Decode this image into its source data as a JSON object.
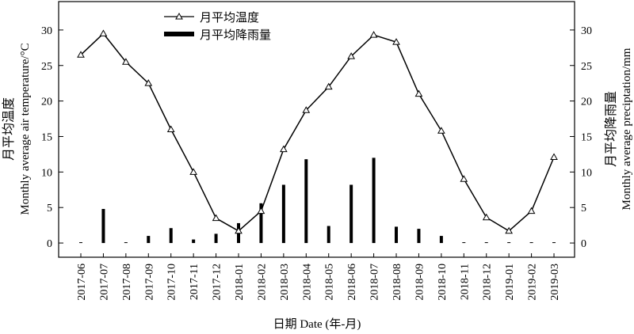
{
  "chart_data": {
    "type": "bar+line",
    "categories": [
      "2017-06",
      "2017-07",
      "2017-08",
      "2017-09",
      "2017-10",
      "2017-11",
      "2017-12",
      "2018-01",
      "2018-02",
      "2018-03",
      "2018-04",
      "2018-05",
      "2018-06",
      "2018-07",
      "2018-08",
      "2018-09",
      "2018-10",
      "2018-11",
      "2018-12",
      "2019-01",
      "2019-02",
      "2019-03"
    ],
    "series": [
      {
        "name": "月平均温度",
        "type": "line",
        "axis": "left",
        "marker": "triangle",
        "values": [
          26.5,
          29.5,
          25.5,
          22.5,
          16.0,
          10.0,
          3.5,
          1.7,
          4.5,
          13.2,
          18.7,
          22.0,
          26.3,
          29.3,
          28.3,
          21.0,
          15.8,
          9.0,
          3.6,
          1.7,
          4.5,
          12.1
        ]
      },
      {
        "name": "月平均降雨量",
        "type": "bar",
        "axis": "right",
        "values": [
          0.0,
          4.8,
          0.1,
          1.0,
          2.1,
          0.5,
          1.3,
          2.8,
          5.6,
          8.2,
          11.8,
          2.4,
          8.2,
          12.0,
          2.3,
          2.0,
          1.0,
          0.0,
          0.0,
          0.0,
          0.0,
          0.0
        ]
      }
    ],
    "xlabel": "日期 Date (年-月)",
    "ylabel_left": [
      "月平均温度",
      "Monthly average air temperature/°C"
    ],
    "ylabel_right": [
      "月平均降雨量",
      "Monthly average preciptation/mm"
    ],
    "ylim_left": [
      -2,
      34
    ],
    "ylim_right": [
      -2,
      34
    ],
    "yticks": [
      0,
      5,
      10,
      15,
      20,
      25,
      30
    ],
    "grid": false,
    "legend_position": "top-left"
  }
}
